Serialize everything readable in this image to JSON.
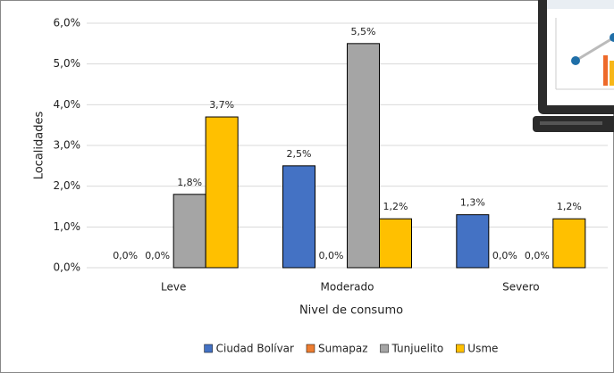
{
  "chart_data": {
    "type": "bar",
    "y_label": "Localidades",
    "x_label": "Nivel de consumo",
    "categories": [
      "Leve",
      "Moderado",
      "Severo"
    ],
    "series": [
      {
        "name": "Ciudad Bolívar",
        "color": "#4472c4",
        "values": [
          0,
          2.5,
          1.3
        ],
        "value_labels": [
          "0,0%",
          "2,5%",
          "1,3%"
        ]
      },
      {
        "name": "Sumapaz",
        "color": "#ed7d31",
        "values": [
          0,
          0,
          0
        ],
        "value_labels": [
          "0,0%",
          "0,0%",
          "0,0%"
        ]
      },
      {
        "name": "Tunjuelito",
        "color": "#a5a5a5",
        "values": [
          1.8,
          5.5,
          0
        ],
        "value_labels": [
          "1,8%",
          "5,5%",
          "0,0%"
        ]
      },
      {
        "name": "Usme",
        "color": "#ffc000",
        "values": [
          3.7,
          1.2,
          1.2
        ],
        "value_labels": [
          "3,7%",
          "1,2%",
          "1,2%"
        ]
      }
    ],
    "ylim": [
      0,
      6
    ],
    "yticks": [
      {
        "value": 0,
        "label": "0,0%"
      },
      {
        "value": 1,
        "label": "1,0%"
      },
      {
        "value": 2,
        "label": "2,0%"
      },
      {
        "value": 3,
        "label": "3,0%"
      },
      {
        "value": 4,
        "label": "4,0%"
      },
      {
        "value": 5,
        "label": "5,0%"
      },
      {
        "value": 6,
        "label": "6,0%"
      }
    ],
    "grid": true,
    "legend": "bottom"
  }
}
